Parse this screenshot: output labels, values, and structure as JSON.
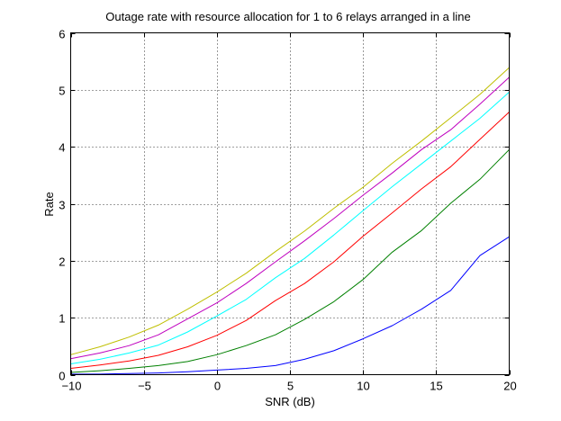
{
  "chart_data": {
    "type": "line",
    "title": "Outage rate with resource allocation for 1 to 6 relays arranged in a line",
    "xlabel": "SNR (dB)",
    "ylabel": "Rate",
    "xlim": [
      -10,
      20
    ],
    "ylim": [
      0,
      6
    ],
    "xticks": [
      -10,
      -5,
      0,
      5,
      10,
      15,
      20
    ],
    "xtick_labels": [
      "−10",
      "−5",
      "0",
      "5",
      "10",
      "15",
      "20"
    ],
    "yticks": [
      0,
      1,
      2,
      3,
      4,
      5,
      6
    ],
    "ytick_labels": [
      "0",
      "1",
      "2",
      "3",
      "4",
      "5",
      "6"
    ],
    "grid": true,
    "x": [
      -10,
      -8,
      -6,
      -4,
      -2,
      0,
      2,
      4,
      6,
      8,
      10,
      12,
      14,
      16,
      18,
      20
    ],
    "series": [
      {
        "color": "#0000ff",
        "values": [
          0.01,
          0.01,
          0.02,
          0.03,
          0.05,
          0.08,
          0.11,
          0.16,
          0.27,
          0.42,
          0.63,
          0.86,
          1.15,
          1.48,
          2.09,
          2.42
        ]
      },
      {
        "color": "#008000",
        "values": [
          0.04,
          0.07,
          0.11,
          0.16,
          0.23,
          0.35,
          0.51,
          0.7,
          0.97,
          1.28,
          1.67,
          2.15,
          2.53,
          3.01,
          3.43,
          3.95
        ]
      },
      {
        "color": "#ff0000",
        "values": [
          0.11,
          0.17,
          0.24,
          0.34,
          0.49,
          0.69,
          0.95,
          1.3,
          1.6,
          1.98,
          2.43,
          2.84,
          3.26,
          3.65,
          4.13,
          4.61
        ]
      },
      {
        "color": "#00ffff",
        "values": [
          0.19,
          0.27,
          0.38,
          0.52,
          0.75,
          1.03,
          1.32,
          1.7,
          2.04,
          2.45,
          2.88,
          3.3,
          3.7,
          4.1,
          4.5,
          4.96
        ]
      },
      {
        "color": "#bf00bf",
        "values": [
          0.28,
          0.38,
          0.51,
          0.7,
          0.98,
          1.26,
          1.6,
          1.98,
          2.35,
          2.74,
          3.15,
          3.54,
          3.95,
          4.3,
          4.75,
          5.22
        ]
      },
      {
        "color": "#bfbf00",
        "values": [
          0.35,
          0.49,
          0.66,
          0.87,
          1.15,
          1.45,
          1.78,
          2.16,
          2.52,
          2.92,
          3.29,
          3.71,
          4.1,
          4.51,
          4.92,
          5.39
        ]
      }
    ]
  }
}
